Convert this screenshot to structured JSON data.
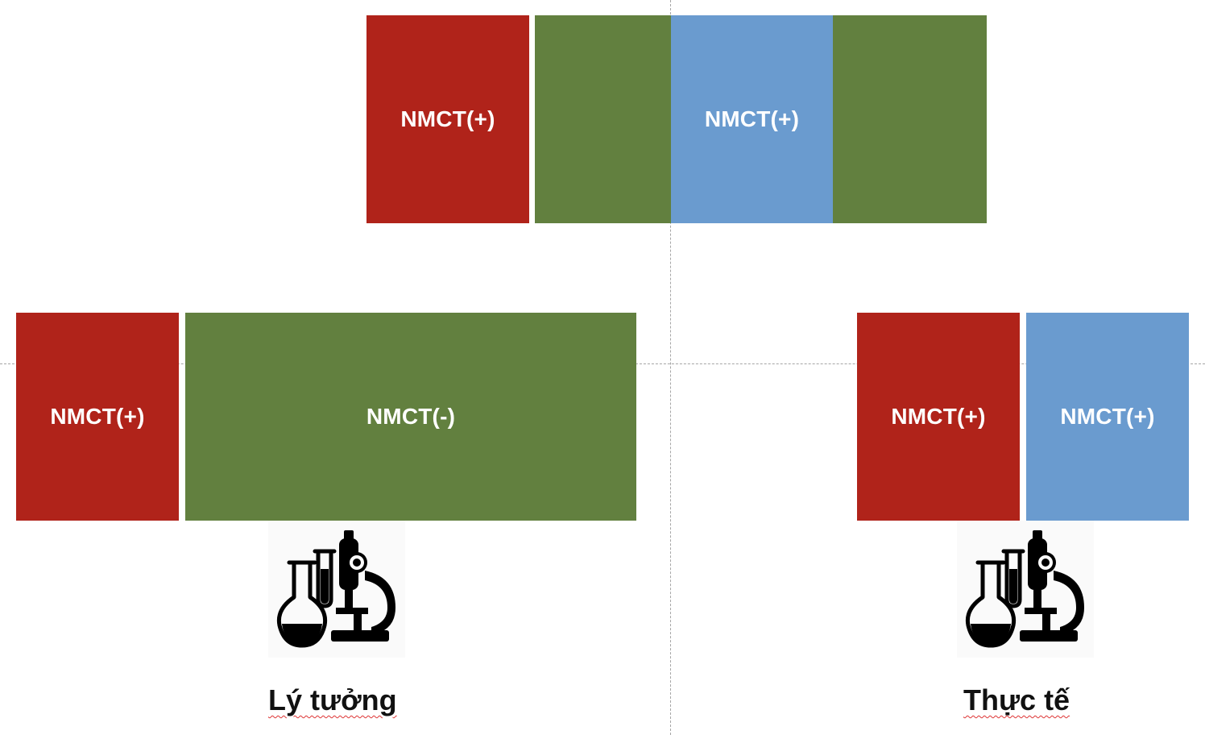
{
  "diagram": {
    "top_row": {
      "blocks": [
        {
          "label": "NMCT(+)",
          "color": "#b0231a"
        },
        {
          "label": "",
          "color": "#62803f"
        },
        {
          "label": "NMCT(+)",
          "color": "#6a9bcf"
        },
        {
          "label": "",
          "color": "#62803f"
        }
      ]
    },
    "left_group": {
      "blocks": [
        {
          "label": "NMCT(+)",
          "color": "#b0231a"
        },
        {
          "label": "NMCT(-)",
          "color": "#62803f"
        }
      ],
      "icon": "lab-flask-microscope-icon",
      "caption": "Lý tưởng"
    },
    "right_group": {
      "blocks": [
        {
          "label": "NMCT(+)",
          "color": "#b0231a"
        },
        {
          "label": "NMCT(+)",
          "color": "#6a9bcf"
        }
      ],
      "icon": "lab-flask-microscope-icon",
      "caption": "Thực tế"
    }
  }
}
